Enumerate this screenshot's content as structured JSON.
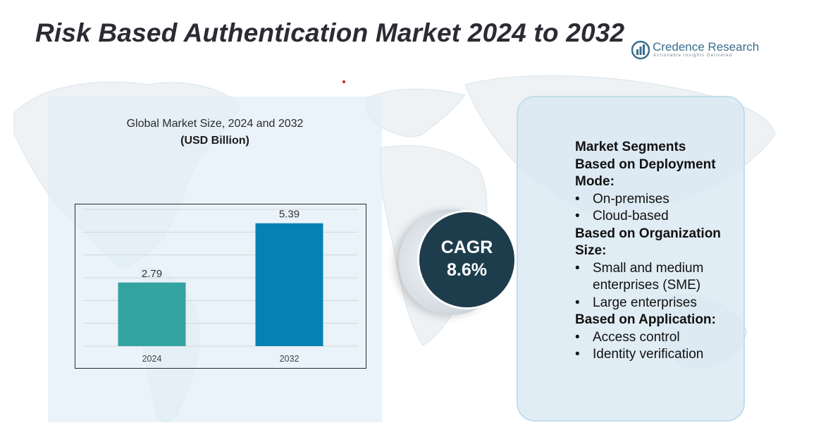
{
  "title": "Risk Based Authentication Market 2024 to 2032",
  "logo": {
    "name": "Credence Research",
    "tagline": "Actionable Insights Delivered",
    "icon": "credence-research-logo-icon"
  },
  "chart_heading": {
    "title": "Global Market Size, 2024 and 2032",
    "unit": "(USD Billion)"
  },
  "chart_data": {
    "type": "bar",
    "title": "Global Market Size, 2024 and 2032",
    "ylabel": "(USD Billion)",
    "xlabel": "",
    "categories": [
      "2024",
      "2032"
    ],
    "values": [
      2.79,
      5.39
    ],
    "data_labels": [
      "2.79",
      "5.39"
    ],
    "colors": [
      "#33a39f",
      "#0582b3"
    ],
    "ylim": [
      0,
      6
    ],
    "grid": true,
    "legend": "none"
  },
  "cagr": {
    "label": "CAGR",
    "value": "8.6%"
  },
  "segments": [
    {
      "kind": "head",
      "text": "Market Segments"
    },
    {
      "kind": "head",
      "text": "Based on Deployment Mode:"
    },
    {
      "kind": "item",
      "text": "On-premises"
    },
    {
      "kind": "item",
      "text": "Cloud-based"
    },
    {
      "kind": "head",
      "text": "Based on Organization Size:"
    },
    {
      "kind": "item",
      "text": "Small and medium enterprises (SME)"
    },
    {
      "kind": "item",
      "text": "Large enterprises"
    },
    {
      "kind": "head",
      "text": "Based on Application:"
    },
    {
      "kind": "item",
      "text": "Access control"
    },
    {
      "kind": "item",
      "text": "Identity verification"
    }
  ],
  "colors": {
    "title": "#2b2b33",
    "panel": "#e0eef6",
    "cagr_circle": "#1e3d4c",
    "bar_2024": "#33a39f",
    "bar_2032": "#0582b3"
  }
}
